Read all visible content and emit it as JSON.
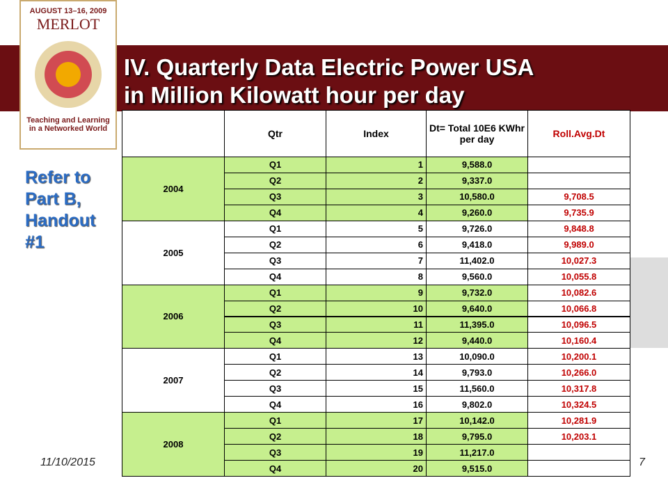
{
  "logo": {
    "dates": "AUGUST 13–16, 2009",
    "name": "MERLOT",
    "tagline": [
      "Teaching and Learning",
      "in a Networked World"
    ]
  },
  "header": {
    "title": [
      "IV. Quarterly Data Electric Power USA",
      "in Million Kilowatt hour per day"
    ]
  },
  "sidebar": {
    "note": [
      "Refer to",
      "Part B,",
      "Handout",
      "#1"
    ]
  },
  "footer": {
    "date": "11/10/2015",
    "page": "7"
  },
  "table": {
    "columns": [
      "Qtr",
      "Index",
      "Dt= Total  10E6 KWhr per day",
      "Roll.Avg.Dt"
    ],
    "groups": [
      {
        "year": "2004",
        "rows": [
          [
            "Q1",
            1,
            "9,588.0",
            null
          ],
          [
            "Q2",
            2,
            "9,337.0",
            null
          ],
          [
            "Q3",
            3,
            "10,580.0",
            "9,708.5"
          ],
          [
            "Q4",
            4,
            "9,260.0",
            "9,735.9"
          ]
        ]
      },
      {
        "year": "2005",
        "rows": [
          [
            "Q1",
            5,
            "9,726.0",
            "9,848.8"
          ],
          [
            "Q2",
            6,
            "9,418.0",
            "9,989.0"
          ],
          [
            "Q3",
            7,
            "11,402.0",
            "10,027.3"
          ],
          [
            "Q4",
            8,
            "9,560.0",
            "10,055.8"
          ]
        ]
      },
      {
        "year": "2006",
        "rows": [
          [
            "Q1",
            9,
            "9,732.0",
            "10,082.6"
          ],
          [
            "Q2",
            10,
            "9,640.0",
            "10,066.8"
          ],
          [
            "Q3",
            11,
            "11,395.0",
            "10,096.5"
          ],
          [
            "Q4",
            12,
            "9,440.0",
            "10,160.4"
          ]
        ]
      },
      {
        "year": "2007",
        "rows": [
          [
            "Q1",
            13,
            "10,090.0",
            "10,200.1"
          ],
          [
            "Q2",
            14,
            "9,793.0",
            "10,266.0"
          ],
          [
            "Q3",
            15,
            "11,560.0",
            "10,317.8"
          ],
          [
            "Q4",
            16,
            "9,802.0",
            "10,324.5"
          ]
        ]
      },
      {
        "year": "2008",
        "rows": [
          [
            "Q1",
            17,
            "10,142.0",
            "10,281.9"
          ],
          [
            "Q2",
            18,
            "9,795.0",
            "10,203.1"
          ],
          [
            "Q3",
            19,
            "11,217.0",
            null
          ],
          [
            "Q4",
            20,
            "9,515.0",
            null
          ]
        ]
      }
    ]
  }
}
